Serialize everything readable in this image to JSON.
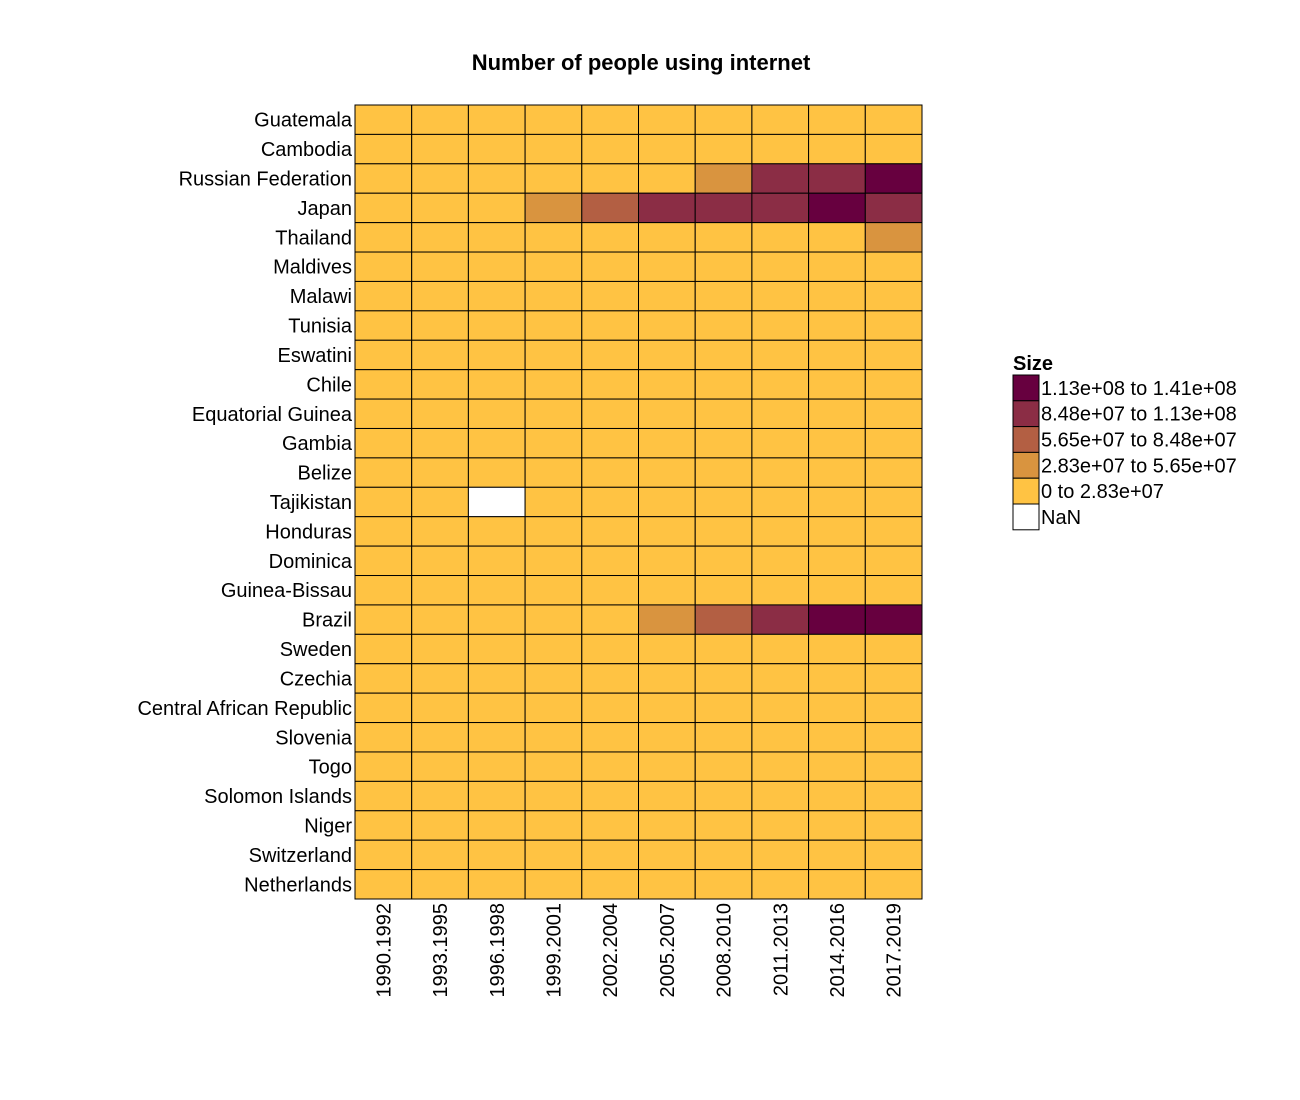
{
  "chart_data": {
    "type": "heatmap",
    "title": "Number of people using internet",
    "xlabel": "",
    "ylabel": "",
    "x": [
      "1990.1992",
      "1993.1995",
      "1996.1998",
      "1999.2001",
      "2002.2004",
      "2005.2007",
      "2008.2010",
      "2011.2013",
      "2014.2016",
      "2017.2019"
    ],
    "y": [
      "Guatemala",
      "Cambodia",
      "Russian Federation",
      "Japan",
      "Thailand",
      "Maldives",
      "Malawi",
      "Tunisia",
      "Eswatini",
      "Chile",
      "Equatorial Guinea",
      "Gambia",
      "Belize",
      "Tajikistan",
      "Honduras",
      "Dominica",
      "Guinea-Bissau",
      "Brazil",
      "Sweden",
      "Czechia",
      "Central African Republic",
      "Slovenia",
      "Togo",
      "Solomon Islands",
      "Niger",
      "Switzerland",
      "Netherlands"
    ],
    "bins": [
      {
        "label": "1.13e+08 to 1.41e+08",
        "color": "#67003f"
      },
      {
        "label": "8.48e+07 to 1.13e+08",
        "color": "#8b2d45"
      },
      {
        "label": "5.65e+07 to 8.48e+07",
        "color": "#b35f43"
      },
      {
        "label": "2.83e+07 to 5.65e+07",
        "color": "#d9943f"
      },
      {
        "label": "0 to 2.83e+07",
        "color": "#ffc343"
      },
      {
        "label": "NaN",
        "color": "#ffffff"
      }
    ],
    "legend": {
      "title": "Size",
      "position": "right"
    },
    "grid": false,
    "cells": [
      [
        4,
        4,
        4,
        4,
        4,
        4,
        4,
        4,
        4,
        4
      ],
      [
        4,
        4,
        4,
        4,
        4,
        4,
        4,
        4,
        4,
        4
      ],
      [
        4,
        4,
        4,
        4,
        4,
        4,
        3,
        1,
        1,
        0
      ],
      [
        4,
        4,
        4,
        3,
        2,
        1,
        1,
        1,
        0,
        1
      ],
      [
        4,
        4,
        4,
        4,
        4,
        4,
        4,
        4,
        4,
        3
      ],
      [
        4,
        4,
        4,
        4,
        4,
        4,
        4,
        4,
        4,
        4
      ],
      [
        4,
        4,
        4,
        4,
        4,
        4,
        4,
        4,
        4,
        4
      ],
      [
        4,
        4,
        4,
        4,
        4,
        4,
        4,
        4,
        4,
        4
      ],
      [
        4,
        4,
        4,
        4,
        4,
        4,
        4,
        4,
        4,
        4
      ],
      [
        4,
        4,
        4,
        4,
        4,
        4,
        4,
        4,
        4,
        4
      ],
      [
        4,
        4,
        4,
        4,
        4,
        4,
        4,
        4,
        4,
        4
      ],
      [
        4,
        4,
        4,
        4,
        4,
        4,
        4,
        4,
        4,
        4
      ],
      [
        4,
        4,
        4,
        4,
        4,
        4,
        4,
        4,
        4,
        4
      ],
      [
        4,
        4,
        5,
        4,
        4,
        4,
        4,
        4,
        4,
        4
      ],
      [
        4,
        4,
        4,
        4,
        4,
        4,
        4,
        4,
        4,
        4
      ],
      [
        4,
        4,
        4,
        4,
        4,
        4,
        4,
        4,
        4,
        4
      ],
      [
        4,
        4,
        4,
        4,
        4,
        4,
        4,
        4,
        4,
        4
      ],
      [
        4,
        4,
        4,
        4,
        4,
        3,
        2,
        1,
        0,
        0
      ],
      [
        4,
        4,
        4,
        4,
        4,
        4,
        4,
        4,
        4,
        4
      ],
      [
        4,
        4,
        4,
        4,
        4,
        4,
        4,
        4,
        4,
        4
      ],
      [
        4,
        4,
        4,
        4,
        4,
        4,
        4,
        4,
        4,
        4
      ],
      [
        4,
        4,
        4,
        4,
        4,
        4,
        4,
        4,
        4,
        4
      ],
      [
        4,
        4,
        4,
        4,
        4,
        4,
        4,
        4,
        4,
        4
      ],
      [
        4,
        4,
        4,
        4,
        4,
        4,
        4,
        4,
        4,
        4
      ],
      [
        4,
        4,
        4,
        4,
        4,
        4,
        4,
        4,
        4,
        4
      ],
      [
        4,
        4,
        4,
        4,
        4,
        4,
        4,
        4,
        4,
        4
      ],
      [
        4,
        4,
        4,
        4,
        4,
        4,
        4,
        4,
        4,
        4
      ]
    ]
  }
}
